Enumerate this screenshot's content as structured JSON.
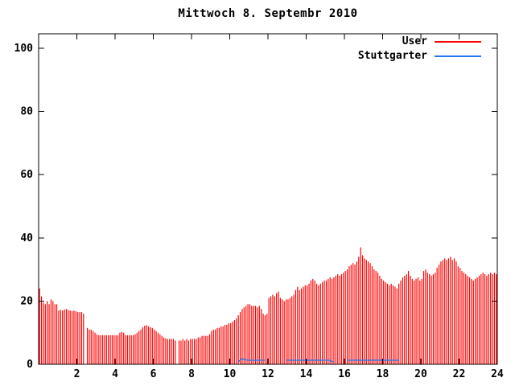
{
  "title": "Mittwoch 8. Septembr 2010",
  "legend": {
    "position": "top-right-inside",
    "items": [
      {
        "label": "User",
        "color": "#ff0000"
      },
      {
        "label": "Stuttgarter",
        "color": "#2277ee"
      }
    ]
  },
  "chart_data": {
    "type": "bar",
    "title": "Mittwoch 8. Septembr 2010",
    "xlabel": "",
    "ylabel": "",
    "x_unit": "hour of day",
    "xlim": [
      0,
      24
    ],
    "ylim": [
      0,
      104.6
    ],
    "x_ticks": [
      2,
      4,
      6,
      8,
      10,
      12,
      14,
      16,
      18,
      20,
      22,
      24
    ],
    "y_ticks": [
      0,
      20,
      40,
      60,
      80,
      100
    ],
    "grid": false,
    "interval_minutes": 6,
    "series": [
      {
        "name": "User",
        "style": "impulses",
        "color": "#ff0000",
        "values": [
          24,
          21.5,
          19.5,
          19,
          20,
          19,
          20.5,
          20,
          19,
          19,
          17,
          17.2,
          17,
          17.3,
          17.5,
          17.2,
          17,
          16.8,
          17,
          16.8,
          16.5,
          16.5,
          16.5,
          16,
          0,
          11.5,
          11,
          11,
          10.5,
          10,
          9.5,
          9.2,
          9.2,
          9.2,
          9.2,
          9.2,
          9.2,
          9.2,
          9.2,
          9.2,
          9.2,
          9.2,
          10,
          10.2,
          10,
          9.2,
          9.2,
          9.2,
          9.2,
          9.2,
          9.5,
          10,
          10.5,
          11,
          11.7,
          12.2,
          12.4,
          12,
          11.7,
          11.5,
          11,
          10.5,
          10,
          9.5,
          9,
          8.5,
          8.2,
          8,
          8,
          8,
          8,
          7.5,
          0,
          7.5,
          7.5,
          8,
          7.5,
          8,
          7.5,
          8,
          8,
          8,
          8,
          8.5,
          8.5,
          9,
          9,
          9,
          9,
          9.5,
          10.5,
          11,
          11,
          11.5,
          11.5,
          12,
          12,
          12.5,
          12.5,
          13,
          13,
          13.5,
          14,
          14.5,
          15.5,
          16.5,
          17.5,
          18,
          18.5,
          19,
          19,
          18.5,
          18.5,
          18.5,
          18,
          18.5,
          17.5,
          16,
          15.5,
          16,
          21,
          21.5,
          22,
          21.5,
          22.5,
          23,
          21,
          20.5,
          20,
          20.5,
          20.5,
          21,
          21.5,
          22,
          23.5,
          24.5,
          23.5,
          24,
          24.5,
          25,
          25,
          25.5,
          26.5,
          27,
          26.5,
          25.5,
          25,
          25.5,
          26,
          26.5,
          26.5,
          27,
          27.5,
          27,
          27.5,
          28,
          28.5,
          28,
          28.5,
          29,
          29.5,
          30,
          31,
          31.5,
          32,
          31.5,
          32.5,
          34,
          37,
          34.5,
          33.5,
          33,
          32.5,
          32,
          31,
          30,
          29.5,
          29,
          28,
          27,
          26.5,
          26,
          25.5,
          25,
          25.5,
          25,
          24.5,
          24,
          25.5,
          26.5,
          27.5,
          28,
          28.5,
          29.5,
          28,
          27,
          26.5,
          27,
          27.5,
          26.5,
          27,
          29.5,
          30,
          29,
          28.5,
          28,
          28.5,
          29,
          30.5,
          31.5,
          32.5,
          33,
          33.5,
          33,
          33.5,
          34,
          33,
          33.5,
          32.5,
          31,
          30.5,
          29.5,
          29,
          28.5,
          28,
          27.5,
          27,
          26.5,
          27,
          27.5,
          28,
          28.5,
          29,
          28.5,
          28,
          28.5,
          29,
          28.5,
          29,
          28.5
        ]
      },
      {
        "name": "Stuttgarter",
        "style": "line",
        "color": "#2277ee",
        "segments": [
          {
            "start_index": 104,
            "values": [
              0.7,
              1.4,
              1.8,
              1.6,
              1.4,
              1.3,
              1.3,
              1.3,
              1.3,
              1.3,
              1.3,
              1.3,
              1.3,
              1.3,
              1.3
            ]
          },
          {
            "start_index": 129,
            "values": [
              1.3,
              1.3,
              1.3,
              1.3,
              1.3,
              1.3,
              1.3,
              1.3,
              1.3,
              1.3,
              1.3,
              1.3,
              1.3,
              1.3,
              1.3,
              1.3,
              1.3,
              1.3,
              1.3,
              1.3,
              1.3,
              1.3,
              1.3,
              1.3,
              0.8,
              0.8
            ]
          },
          {
            "start_index": 161,
            "values": [
              1.3,
              1.3,
              1.3,
              1.3,
              1.3,
              1.3,
              1.3,
              1.3,
              1.3,
              1.3,
              1.3,
              1.3,
              1.3,
              1.3,
              1.3,
              1.3,
              1.3,
              1.3,
              1.3,
              1.3,
              1.3,
              1.3,
              1.3,
              1.3,
              1.3,
              1.3,
              1.3,
              1.3
            ]
          }
        ]
      }
    ]
  }
}
